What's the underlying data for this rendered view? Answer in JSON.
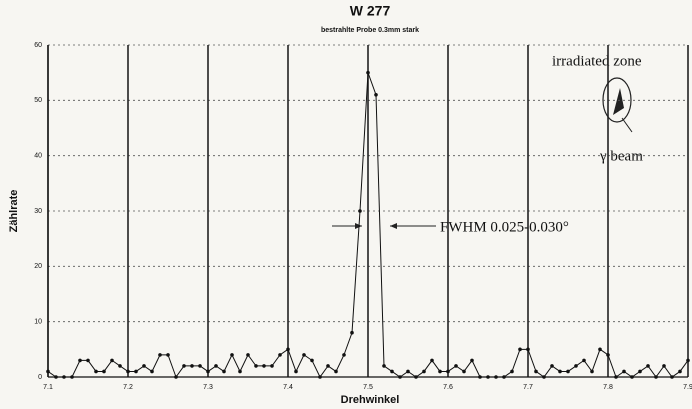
{
  "chart_data": {
    "type": "line",
    "title": "W 277",
    "subtitle": "bestrahlte Probe 0.3mm stark",
    "x_label": "Drehwinkel",
    "y_label": "Zählrate",
    "annotations": [
      "irradiated zone",
      "γ beam",
      "FWHM 0.025-0.030°"
    ],
    "x": [
      7.1,
      7.11,
      7.12,
      7.13,
      7.14,
      7.15,
      7.16,
      7.17,
      7.18,
      7.19,
      7.2,
      7.21,
      7.22,
      7.23,
      7.24,
      7.25,
      7.26,
      7.27,
      7.28,
      7.29,
      7.3,
      7.31,
      7.32,
      7.33,
      7.34,
      7.35,
      7.36,
      7.37,
      7.38,
      7.39,
      7.4,
      7.41,
      7.42,
      7.43,
      7.44,
      7.45,
      7.46,
      7.47,
      7.48,
      7.49,
      7.5,
      7.51,
      7.52,
      7.53,
      7.54,
      7.55,
      7.56,
      7.57,
      7.58,
      7.59,
      7.6,
      7.61,
      7.62,
      7.63,
      7.64,
      7.65,
      7.66,
      7.67,
      7.68,
      7.69,
      7.7,
      7.71,
      7.72,
      7.73,
      7.74,
      7.75,
      7.76,
      7.77,
      7.78,
      7.79,
      7.8,
      7.81,
      7.82,
      7.83,
      7.84,
      7.85,
      7.86,
      7.87,
      7.88,
      7.89,
      7.9
    ],
    "values": [
      1,
      0,
      0,
      0,
      3,
      3,
      1,
      1,
      3,
      2,
      1,
      1,
      2,
      1,
      4,
      4,
      0,
      2,
      2,
      2,
      1,
      2,
      1,
      4,
      1,
      4,
      2,
      2,
      2,
      4,
      5,
      1,
      4,
      3,
      0,
      2,
      1,
      4,
      8,
      30,
      55,
      51,
      2,
      1,
      0,
      1,
      0,
      1,
      3,
      1,
      1,
      2,
      1,
      3,
      0,
      0,
      0,
      0,
      1,
      5,
      5,
      1,
      0,
      2,
      1,
      1,
      2,
      3,
      1,
      5,
      4,
      0,
      1,
      0,
      1,
      2,
      0,
      2,
      0,
      1,
      3
    ],
    "color": "#111111",
    "xlim": [
      7.1,
      7.9
    ],
    "xticks": [
      7.1,
      7.2,
      7.3,
      7.4,
      7.5,
      7.6,
      7.7,
      7.8,
      7.9
    ],
    "ylim": [
      0,
      60
    ],
    "yticks": [
      0,
      10,
      20,
      30,
      40,
      50,
      60
    ],
    "grid": true
  }
}
